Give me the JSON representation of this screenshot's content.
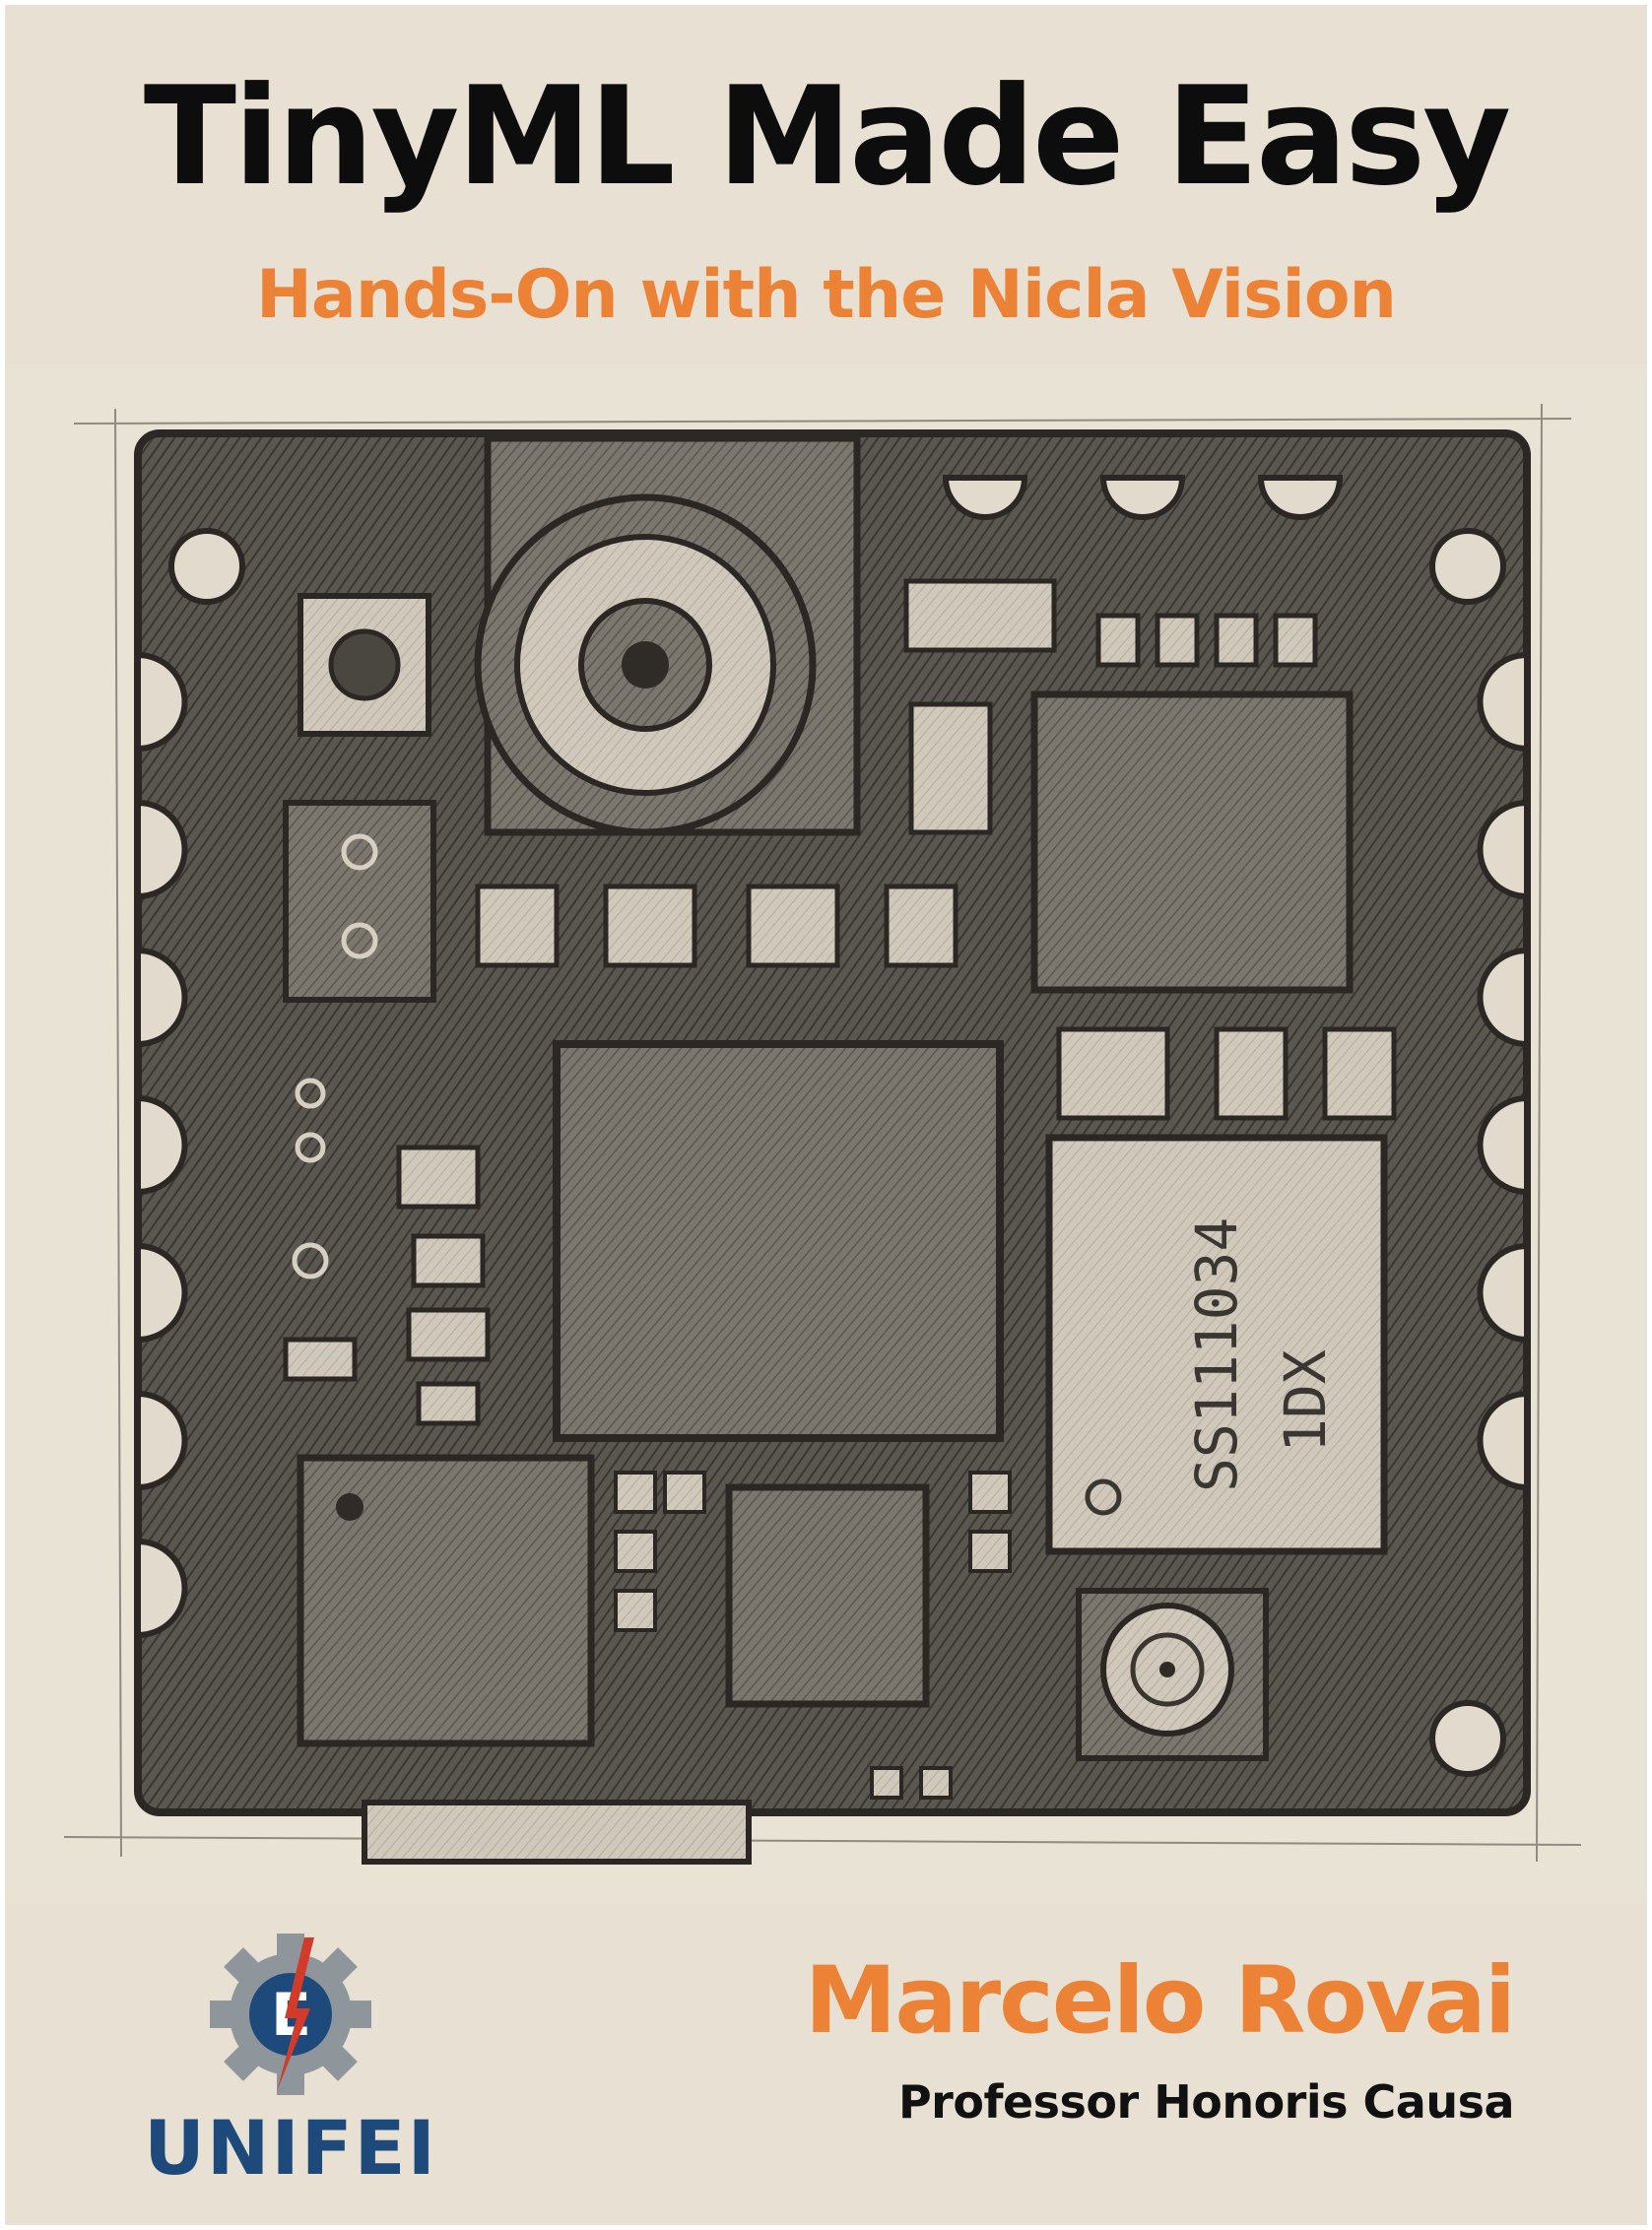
{
  "cover": {
    "title": "TinyML Made Easy",
    "subtitle": "Hands-On with the Nicla Vision",
    "author": "Marcelo Rovai",
    "author_role": "Professor Honoris Causa",
    "publisher_logo": {
      "icon": "gear-lightning-e-icon",
      "text": "UNIFEI"
    },
    "illustration": {
      "subject": "pencil-sketch-circuit-board-icon",
      "chip_marking_line1": "SS111034",
      "chip_marking_line2": "1DX"
    },
    "colors": {
      "background": "#e7e0d3",
      "title": "#0d0d0d",
      "accent": "#ec8236",
      "logo_blue": "#1d4a7a",
      "logo_gear": "#8e969c",
      "logo_bolt": "#d23a2a"
    }
  }
}
